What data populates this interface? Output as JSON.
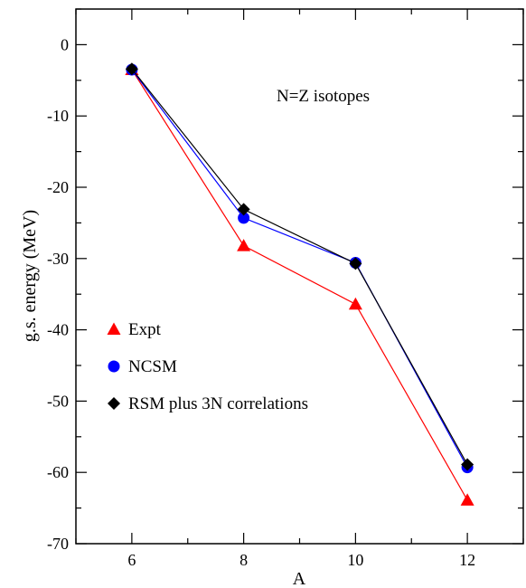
{
  "chart_data": {
    "type": "line",
    "title": "",
    "xlabel": "A",
    "ylabel": "g.s. energy (MeV)",
    "xlim": [
      5,
      13
    ],
    "ylim": [
      -70,
      5
    ],
    "xticks": [
      6,
      8,
      10,
      12
    ],
    "yticks": [
      0,
      -10,
      -20,
      -30,
      -40,
      -50,
      -60,
      -70
    ],
    "grid": false,
    "annotation": "N=Z isotopes",
    "legend_position": "lower-left",
    "series": [
      {
        "name": "Expt",
        "color": "#ff0000",
        "marker": "triangle",
        "x": [
          6,
          8,
          10,
          12
        ],
        "y": [
          -3.5,
          -28.2,
          -36.4,
          -63.9
        ]
      },
      {
        "name": "NCSM",
        "color": "#0000ff",
        "marker": "circle",
        "x": [
          6,
          8,
          10,
          12
        ],
        "y": [
          -3.5,
          -24.3,
          -30.6,
          -59.3
        ]
      },
      {
        "name": "RSM plus 3N correlations",
        "color": "#000000",
        "marker": "diamond",
        "x": [
          6,
          8,
          10,
          12
        ],
        "y": [
          -3.4,
          -23.1,
          -30.7,
          -58.9
        ]
      }
    ]
  }
}
